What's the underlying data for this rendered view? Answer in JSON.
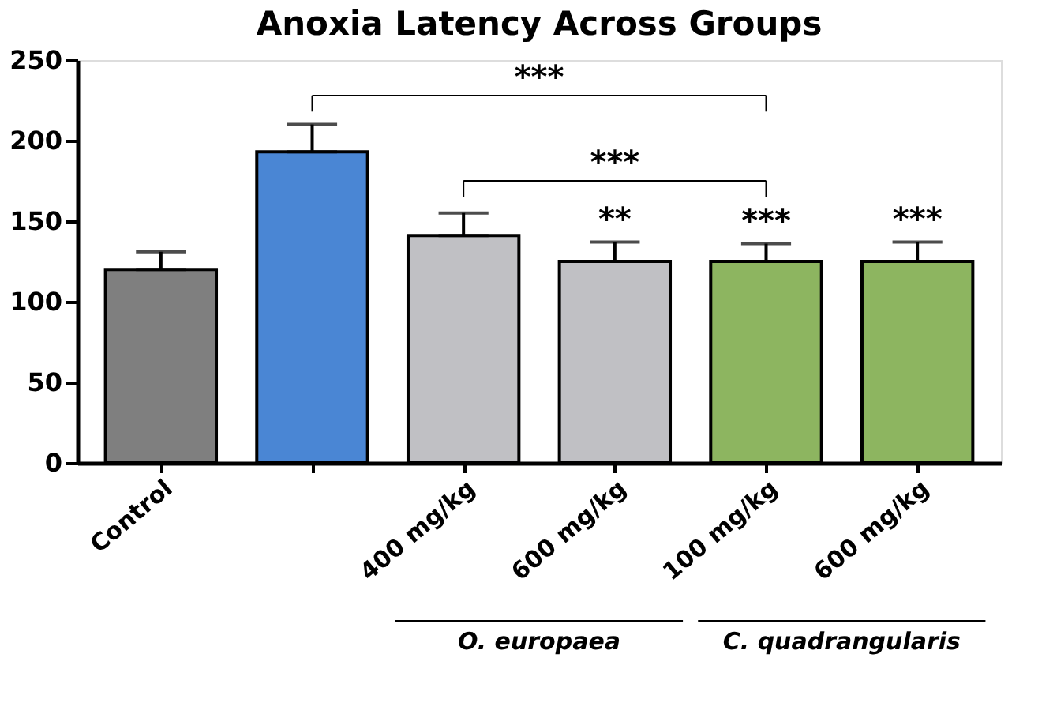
{
  "chart_data": {
    "type": "bar",
    "title": "Anoxia Latency Across Groups",
    "categories": [
      "Control",
      null,
      "400 mg/kg",
      "600 mg/kg",
      "100 mg/kg",
      "600 mg/kg"
    ],
    "values": [
      120,
      193,
      141,
      125,
      125,
      125
    ],
    "colors": [
      "#7f7f7f",
      "#4a86d4",
      "#c0c0c4",
      "#c0c0c4",
      "#8db560",
      "#8db560"
    ],
    "errors": [
      [
        120,
        131
      ],
      [
        193,
        210
      ],
      [
        141,
        155
      ],
      [
        125,
        137
      ],
      [
        125,
        136
      ],
      [
        125,
        137
      ]
    ],
    "ylim": [
      0,
      250
    ],
    "yticks": [
      0,
      50,
      100,
      150,
      200,
      250
    ],
    "grid": false,
    "annotations": [
      "***",
      "***",
      "**",
      "***",
      "***",
      "O. europaea",
      "C. quadrangularis"
    ]
  }
}
